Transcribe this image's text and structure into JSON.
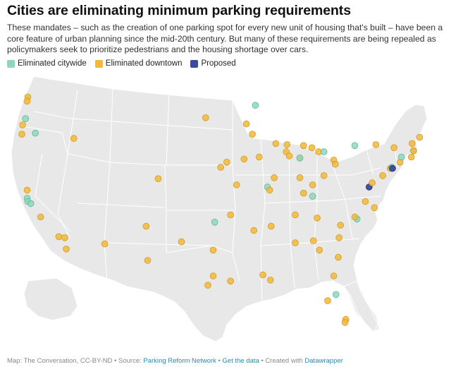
{
  "header": {
    "title": "Cities are eliminating minimum parking requirements",
    "description": "These mandates – such as the creation of one parking spot for every new unit of housing that's built – have been a core feature of urban planning since the mid-20th century. But many of these requirements are being repealed as policymakers seek to prioritize pedestrians and the housing shortage over cars."
  },
  "legend": [
    {
      "key": "citywide",
      "label": "Eliminated citywide",
      "color": "#8fd6bd"
    },
    {
      "key": "downtown",
      "label": "Eliminated downtown",
      "color": "#f2b93a"
    },
    {
      "key": "proposed",
      "label": "Proposed",
      "color": "#3a4a9c"
    }
  ],
  "footer": {
    "credit": "Map: The Conversation, CC-BY-ND",
    "sep1": " • ",
    "source_prefix": "Source: ",
    "source_link": "Parking Reform Network",
    "sep2": " • ",
    "data_link": "Get the data",
    "sep3": " • ",
    "created_prefix": "Created with ",
    "created_link": "Datawrapper"
  },
  "map_data": {
    "type": "point-map",
    "region": "contiguous United States",
    "cities": [
      {
        "category": "downtown",
        "lon": -122.3,
        "lat": 47.6
      },
      {
        "category": "downtown",
        "lon": -122.4,
        "lat": 47.2
      },
      {
        "category": "citywide",
        "lon": -122.6,
        "lat": 45.5
      },
      {
        "category": "downtown",
        "lon": -123.0,
        "lat": 44.9
      },
      {
        "category": "downtown",
        "lon": -123.1,
        "lat": 44.0
      },
      {
        "category": "citywide",
        "lon": -121.3,
        "lat": 44.1
      },
      {
        "category": "downtown",
        "lon": -116.2,
        "lat": 43.6
      },
      {
        "category": "downtown",
        "lon": -122.4,
        "lat": 38.6
      },
      {
        "category": "citywide",
        "lon": -122.4,
        "lat": 37.8
      },
      {
        "category": "citywide",
        "lon": -122.3,
        "lat": 37.5
      },
      {
        "category": "citywide",
        "lon": -121.9,
        "lat": 37.3
      },
      {
        "category": "downtown",
        "lon": -120.6,
        "lat": 36.0
      },
      {
        "category": "downtown",
        "lon": -118.2,
        "lat": 34.1
      },
      {
        "category": "downtown",
        "lon": -117.4,
        "lat": 34.0
      },
      {
        "category": "downtown",
        "lon": -117.2,
        "lat": 32.9
      },
      {
        "category": "downtown",
        "lon": -112.1,
        "lat": 33.4
      },
      {
        "category": "downtown",
        "lon": -106.6,
        "lat": 35.1
      },
      {
        "category": "downtown",
        "lon": -105.0,
        "lat": 39.7
      },
      {
        "category": "downtown",
        "lon": -98.7,
        "lat": 45.6
      },
      {
        "category": "downtown",
        "lon": -96.7,
        "lat": 40.8
      },
      {
        "category": "downtown",
        "lon": -95.9,
        "lat": 41.3
      },
      {
        "category": "downtown",
        "lon": -94.6,
        "lat": 39.1
      },
      {
        "category": "downtown",
        "lon": -95.4,
        "lat": 36.2
      },
      {
        "category": "citywide",
        "lon": -97.5,
        "lat": 35.5
      },
      {
        "category": "downtown",
        "lon": -101.9,
        "lat": 33.6
      },
      {
        "category": "downtown",
        "lon": -106.4,
        "lat": 31.8
      },
      {
        "category": "downtown",
        "lon": -97.7,
        "lat": 32.8
      },
      {
        "category": "downtown",
        "lon": -98.4,
        "lat": 29.4
      },
      {
        "category": "downtown",
        "lon": -97.7,
        "lat": 30.3
      },
      {
        "category": "downtown",
        "lon": -95.4,
        "lat": 29.8
      },
      {
        "category": "downtown",
        "lon": -91.1,
        "lat": 30.4
      },
      {
        "category": "downtown",
        "lon": -90.1,
        "lat": 29.9
      },
      {
        "category": "downtown",
        "lon": -92.3,
        "lat": 34.7
      },
      {
        "category": "citywide",
        "lon": -92.1,
        "lat": 46.8
      },
      {
        "category": "downtown",
        "lon": -93.3,
        "lat": 45.0
      },
      {
        "category": "downtown",
        "lon": -92.5,
        "lat": 44.0
      },
      {
        "category": "downtown",
        "lon": -93.6,
        "lat": 41.6
      },
      {
        "category": "downtown",
        "lon": -91.6,
        "lat": 41.8
      },
      {
        "category": "downtown",
        "lon": -89.4,
        "lat": 43.1
      },
      {
        "category": "downtown",
        "lon": -87.9,
        "lat": 43.0
      },
      {
        "category": "downtown",
        "lon": -88.0,
        "lat": 42.3
      },
      {
        "category": "downtown",
        "lon": -87.6,
        "lat": 41.9
      },
      {
        "category": "downtown",
        "lon": -89.6,
        "lat": 39.8
      },
      {
        "category": "citywide",
        "lon": -90.5,
        "lat": 38.9
      },
      {
        "category": "downtown",
        "lon": -90.2,
        "lat": 38.6
      },
      {
        "category": "downtown",
        "lon": -86.2,
        "lat": 41.7
      },
      {
        "category": "downtown",
        "lon": -85.7,
        "lat": 42.9
      },
      {
        "category": "downtown",
        "lon": -84.6,
        "lat": 42.7
      },
      {
        "category": "downtown",
        "lon": -83.7,
        "lat": 42.3
      },
      {
        "category": "citywide",
        "lon": -83.0,
        "lat": 42.3
      },
      {
        "category": "citywide",
        "lon": -86.2,
        "lat": 41.7
      },
      {
        "category": "downtown",
        "lon": -81.7,
        "lat": 41.5
      },
      {
        "category": "downtown",
        "lon": -81.5,
        "lat": 41.1
      },
      {
        "category": "downtown",
        "lon": -86.2,
        "lat": 39.8
      },
      {
        "category": "downtown",
        "lon": -84.5,
        "lat": 39.1
      },
      {
        "category": "downtown",
        "lon": -83.0,
        "lat": 40.0
      },
      {
        "category": "downtown",
        "lon": -85.7,
        "lat": 38.3
      },
      {
        "category": "citywide",
        "lon": -84.5,
        "lat": 38.0
      },
      {
        "category": "downtown",
        "lon": -83.9,
        "lat": 35.9
      },
      {
        "category": "downtown",
        "lon": -86.8,
        "lat": 36.2
      },
      {
        "category": "downtown",
        "lon": -90.0,
        "lat": 35.1
      },
      {
        "category": "downtown",
        "lon": -86.8,
        "lat": 33.5
      },
      {
        "category": "downtown",
        "lon": -84.4,
        "lat": 33.7
      },
      {
        "category": "downtown",
        "lon": -83.6,
        "lat": 32.8
      },
      {
        "category": "downtown",
        "lon": -81.1,
        "lat": 32.1
      },
      {
        "category": "downtown",
        "lon": -81.0,
        "lat": 34.0
      },
      {
        "category": "downtown",
        "lon": -80.8,
        "lat": 35.2
      },
      {
        "category": "citywide",
        "lon": -78.6,
        "lat": 35.8
      },
      {
        "category": "downtown",
        "lon": -78.9,
        "lat": 36.0
      },
      {
        "category": "downtown",
        "lon": -77.5,
        "lat": 37.5
      },
      {
        "category": "downtown",
        "lon": -76.3,
        "lat": 36.9
      },
      {
        "category": "proposed",
        "lon": -77.0,
        "lat": 38.9
      },
      {
        "category": "downtown",
        "lon": -76.6,
        "lat": 39.3
      },
      {
        "category": "downtown",
        "lon": -75.2,
        "lat": 40.0
      },
      {
        "category": "downtown",
        "lon": -74.2,
        "lat": 40.7
      },
      {
        "category": "citywide",
        "lon": -74.0,
        "lat": 40.8
      },
      {
        "category": "proposed",
        "lon": -73.9,
        "lat": 40.7
      },
      {
        "category": "downtown",
        "lon": -73.7,
        "lat": 42.7
      },
      {
        "category": "downtown",
        "lon": -76.1,
        "lat": 43.0
      },
      {
        "category": "citywide",
        "lon": -78.9,
        "lat": 42.9
      },
      {
        "category": "downtown",
        "lon": -72.9,
        "lat": 41.3
      },
      {
        "category": "citywide",
        "lon": -72.7,
        "lat": 41.8
      },
      {
        "category": "downtown",
        "lon": -71.4,
        "lat": 41.8
      },
      {
        "category": "citywide",
        "lon": -71.1,
        "lat": 42.4
      },
      {
        "category": "downtown",
        "lon": -71.1,
        "lat": 42.4
      },
      {
        "category": "downtown",
        "lon": -71.3,
        "lat": 43.1
      },
      {
        "category": "downtown",
        "lon": -70.3,
        "lat": 43.7
      },
      {
        "category": "downtown",
        "lon": -81.7,
        "lat": 30.3
      },
      {
        "category": "citywide",
        "lon": -81.4,
        "lat": 28.5
      },
      {
        "category": "downtown",
        "lon": -82.5,
        "lat": 27.9
      },
      {
        "category": "downtown",
        "lon": -80.1,
        "lat": 26.1
      },
      {
        "category": "downtown",
        "lon": -80.2,
        "lat": 25.8
      }
    ]
  }
}
